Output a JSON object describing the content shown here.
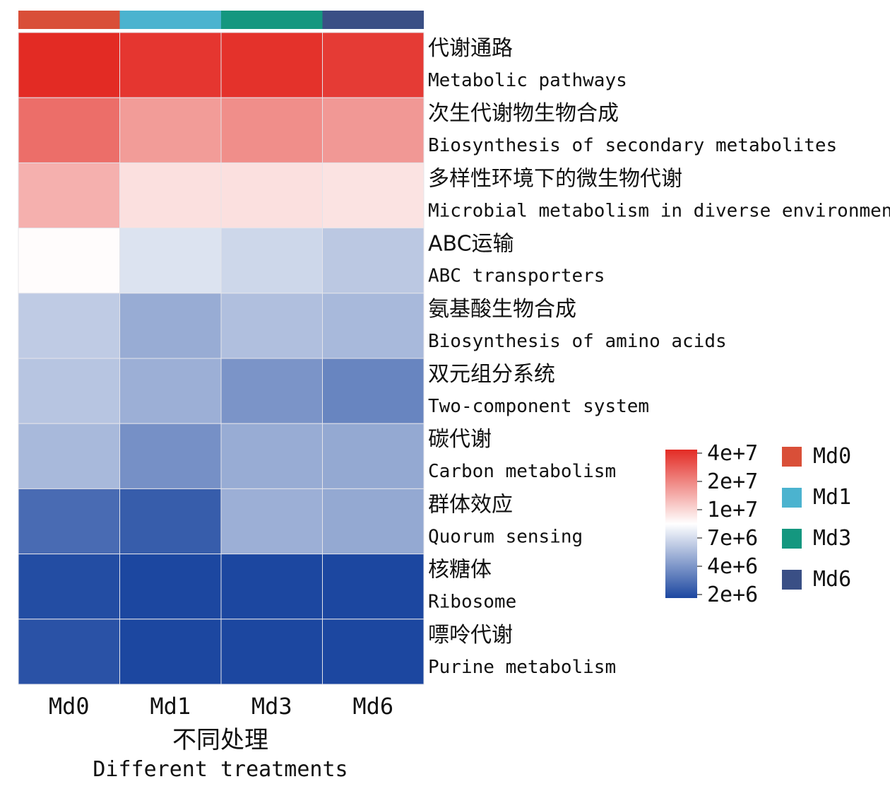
{
  "chart_data": {
    "type": "heatmap",
    "columns": [
      "Md0",
      "Md1",
      "Md3",
      "Md6"
    ],
    "column_annotation": {
      "Md0": "#d94f38",
      "Md1": "#4bb3cf",
      "Md3": "#14977f",
      "Md6": "#3a4f85"
    },
    "rows": [
      {
        "zh": "代谢通路",
        "en": "Metabolic pathways",
        "values": [
          45000000,
          40000000,
          42000000,
          38000000
        ]
      },
      {
        "zh": "次生代谢物生物合成",
        "en": "Biosynthesis of secondary metabolites",
        "values": [
          23000000,
          15000000,
          17000000,
          15500000
        ]
      },
      {
        "zh": "多样性环境下的微生物代谢",
        "en": "Microbial metabolism in diverse environments",
        "values": [
          12500000,
          8500000,
          8500000,
          8300000
        ]
      },
      {
        "zh": "ABC运输",
        "en": "ABC transporters",
        "values": [
          7100000,
          6200000,
          5800000,
          5300000
        ]
      },
      {
        "zh": "氨基酸生物合成",
        "en": "Biosynthesis of amino acids",
        "values": [
          5400000,
          4400000,
          5000000,
          4800000
        ]
      },
      {
        "zh": "双元组分系统",
        "en": "Two-component system",
        "values": [
          5200000,
          4500000,
          3700000,
          3300000
        ]
      },
      {
        "zh": "碳代谢",
        "en": "Carbon metabolism",
        "values": [
          4800000,
          3600000,
          4400000,
          4300000
        ]
      },
      {
        "zh": "群体效应",
        "en": "Quorum sensing",
        "values": [
          2700000,
          2400000,
          4500000,
          4300000
        ]
      },
      {
        "zh": "核糖体",
        "en": "Ribosome",
        "values": [
          2100000,
          1900000,
          2000000,
          2000000
        ]
      },
      {
        "zh": "嘌呤代谢",
        "en": "Purine metabolism",
        "values": [
          2200000,
          2000000,
          1900000,
          1800000
        ]
      }
    ],
    "xlabel_zh": "不同处理",
    "xlabel": "Different treatments",
    "colorbar": {
      "ticks": [
        "4e+7",
        "2e+7",
        "1e+7",
        "7e+6",
        "4e+6",
        "2e+6"
      ],
      "tick_values": [
        40000000,
        20000000,
        10000000,
        7000000,
        4000000,
        2000000
      ],
      "colors": [
        "#e32b24",
        "#ffffff",
        "#1c47a0"
      ]
    },
    "legend": [
      {
        "label": "Md0",
        "color": "#d94f38"
      },
      {
        "label": "Md1",
        "color": "#4bb3cf"
      },
      {
        "label": "Md3",
        "color": "#14977f"
      },
      {
        "label": "Md6",
        "color": "#3a4f85"
      }
    ]
  }
}
